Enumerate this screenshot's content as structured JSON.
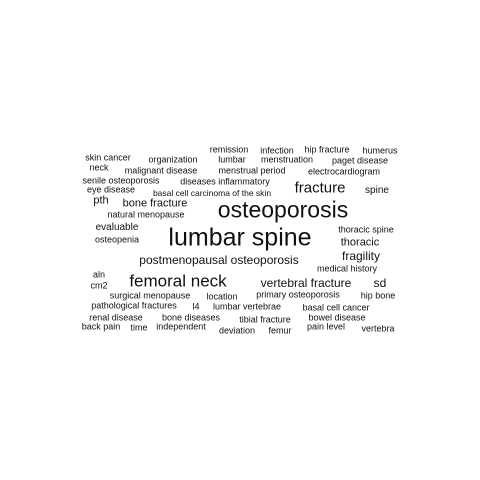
{
  "text_color": "#111111",
  "background_color": "#ffffff",
  "words": [
    {
      "text": "remission"
    },
    {
      "text": "infection"
    },
    {
      "text": "hip fracture"
    },
    {
      "text": "humerus"
    },
    {
      "text": "skin cancer"
    },
    {
      "text": "organization"
    },
    {
      "text": "lumbar"
    },
    {
      "text": "menstruation"
    },
    {
      "text": "paget disease"
    },
    {
      "text": "neck"
    },
    {
      "text": "malignant disease"
    },
    {
      "text": "menstrual period"
    },
    {
      "text": "electrocardiogram"
    },
    {
      "text": "senile osteoporosis"
    },
    {
      "text": "diseases inflammatory"
    },
    {
      "text": "fracture"
    },
    {
      "text": "eye disease"
    },
    {
      "text": "basal cell carcinoma of the skin"
    },
    {
      "text": "spine"
    },
    {
      "text": "pth"
    },
    {
      "text": "bone fracture"
    },
    {
      "text": "osteoporosis"
    },
    {
      "text": "natural menopause"
    },
    {
      "text": "evaluable"
    },
    {
      "text": "thoracic spine"
    },
    {
      "text": "lumbar spine"
    },
    {
      "text": "osteopenia"
    },
    {
      "text": "thoracic"
    },
    {
      "text": "fragility"
    },
    {
      "text": "postmenopausal osteoporosis"
    },
    {
      "text": "medical history"
    },
    {
      "text": "aln"
    },
    {
      "text": "femoral neck"
    },
    {
      "text": "vertebral fracture"
    },
    {
      "text": "sd"
    },
    {
      "text": "cm2"
    },
    {
      "text": "surgical menopause"
    },
    {
      "text": "location"
    },
    {
      "text": "primary osteoporosis"
    },
    {
      "text": "hip bone"
    },
    {
      "text": "pathological fractures"
    },
    {
      "text": "l4"
    },
    {
      "text": "lumbar vertebrae"
    },
    {
      "text": "basal cell cancer"
    },
    {
      "text": "renal disease"
    },
    {
      "text": "bone diseases"
    },
    {
      "text": "tibial fracture"
    },
    {
      "text": "bowel disease"
    },
    {
      "text": "back pain"
    },
    {
      "text": "time"
    },
    {
      "text": "independent"
    },
    {
      "text": "deviation"
    },
    {
      "text": "femur"
    },
    {
      "text": "pain level"
    },
    {
      "text": "vertebra"
    }
  ]
}
